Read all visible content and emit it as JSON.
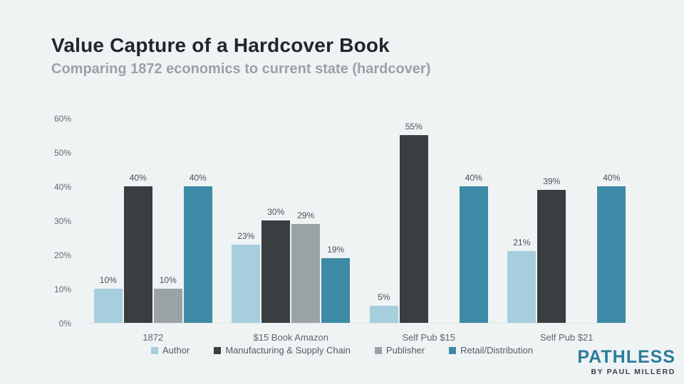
{
  "header": {
    "title": "Value Capture of a Hardcover Book",
    "subtitle": "Comparing 1872 economics to current state (hardcover)"
  },
  "chart_data": {
    "type": "bar",
    "title": "Value Capture of a Hardcover Book",
    "subtitle": "Comparing 1872 economics to current state (hardcover)",
    "categories": [
      "1872",
      "$15 Book Amazon",
      "Self Pub $15",
      "Self Pub $21"
    ],
    "series": [
      {
        "name": "Author",
        "color": "#a7cedd",
        "values": [
          10,
          23,
          5,
          21
        ]
      },
      {
        "name": "Manufacturing & Supply Chain",
        "color": "#3a3e41",
        "values": [
          40,
          30,
          55,
          39
        ]
      },
      {
        "name": "Publisher",
        "color": "#99a3a6",
        "values": [
          10,
          29,
          0,
          0
        ]
      },
      {
        "name": "Retail/Distribution",
        "color": "#3c8aa6",
        "values": [
          40,
          19,
          40,
          40
        ]
      }
    ],
    "value_label_suffix": "%",
    "ylim": [
      0,
      60
    ],
    "yticks": [
      "0%",
      "10%",
      "20%",
      "30%",
      "40%",
      "50%",
      "60%"
    ],
    "ytick_values": [
      0,
      10,
      20,
      30,
      40,
      50,
      60
    ],
    "grid": false,
    "legend_position": "bottom"
  },
  "brand": {
    "name": "PATHLESS",
    "byline": "BY PAUL MILLERD"
  },
  "colors": {
    "background": "#eff3f4",
    "title": "#21262b",
    "subtitle": "#9ba2a6",
    "axis_text": "#636b6f",
    "value_label": "#4a5055",
    "baseline": "#e2e8ea",
    "brand": "#2b7c9e",
    "byline": "#3a4145"
  }
}
